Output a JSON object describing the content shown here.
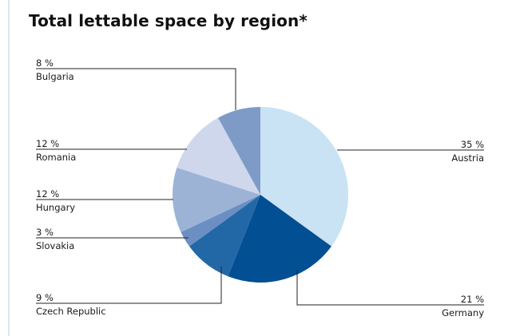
{
  "chart_data": {
    "type": "pie",
    "title": "Total lettable space by region*",
    "unit": "%",
    "slices": [
      {
        "label": "Austria",
        "value": 35,
        "value_label": "35 %",
        "color": "#c9e3f4"
      },
      {
        "label": "Germany",
        "value": 21,
        "value_label": "21 %",
        "color": "#034f93"
      },
      {
        "label": "Czech Republic",
        "value": 9,
        "value_label": "9 %",
        "color": "#2368a6"
      },
      {
        "label": "Slovakia",
        "value": 3,
        "value_label": "3 %",
        "color": "#6b8fc2"
      },
      {
        "label": "Hungary",
        "value": 12,
        "value_label": "12 %",
        "color": "#9cb3d6"
      },
      {
        "label": "Romania",
        "value": 12,
        "value_label": "12 %",
        "color": "#ced7eb"
      },
      {
        "label": "Bulgaria",
        "value": 8,
        "value_label": "8 %",
        "color": "#7e9bc8"
      }
    ]
  }
}
